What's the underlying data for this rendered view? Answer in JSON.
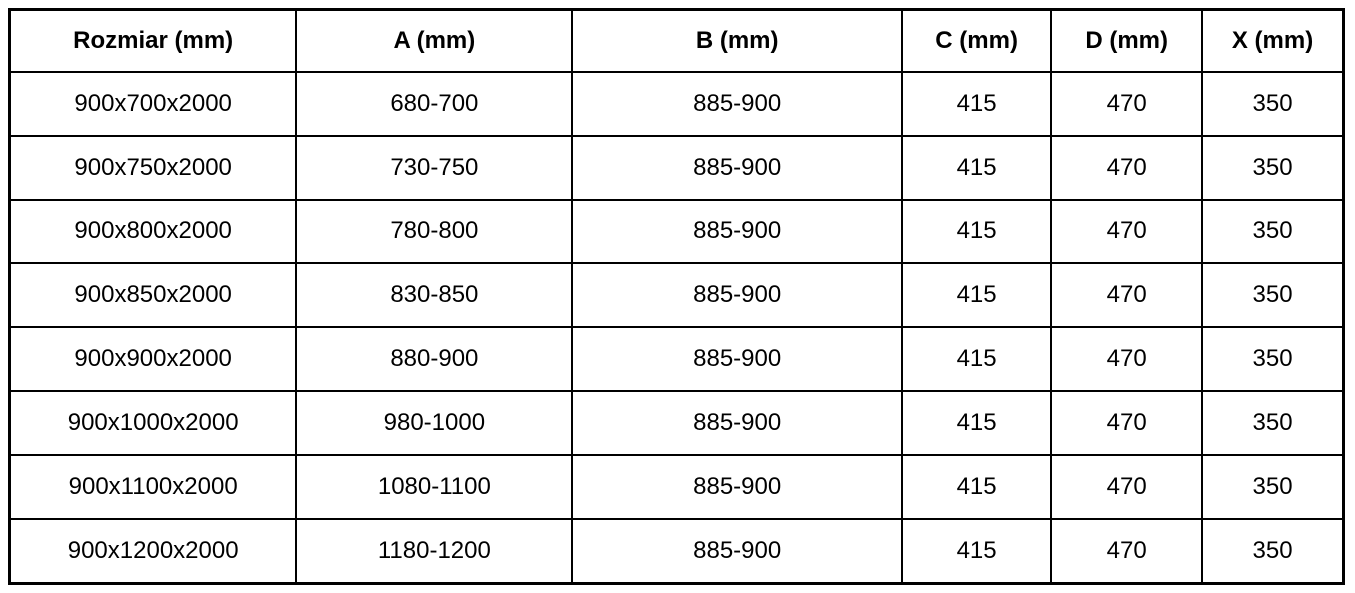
{
  "table": {
    "columns": [
      "Rozmiar (mm)",
      "A (mm)",
      "B (mm)",
      "C (mm)",
      "D (mm)",
      "X (mm)"
    ],
    "rows": [
      [
        "900x700x2000",
        "680-700",
        "885-900",
        "415",
        "470",
        "350"
      ],
      [
        "900x750x2000",
        "730-750",
        "885-900",
        "415",
        "470",
        "350"
      ],
      [
        "900x800x2000",
        "780-800",
        "885-900",
        "415",
        "470",
        "350"
      ],
      [
        "900x850x2000",
        "830-850",
        "885-900",
        "415",
        "470",
        "350"
      ],
      [
        "900x900x2000",
        "880-900",
        "885-900",
        "415",
        "470",
        "350"
      ],
      [
        "900x1000x2000",
        "980-1000",
        "885-900",
        "415",
        "470",
        "350"
      ],
      [
        "900x1100x2000",
        "1080-1100",
        "885-900",
        "415",
        "470",
        "350"
      ],
      [
        "900x1200x2000",
        "1180-1200",
        "885-900",
        "415",
        "470",
        "350"
      ]
    ]
  },
  "colors": {
    "border": "#000000",
    "background": "#ffffff",
    "text": "#000000"
  }
}
